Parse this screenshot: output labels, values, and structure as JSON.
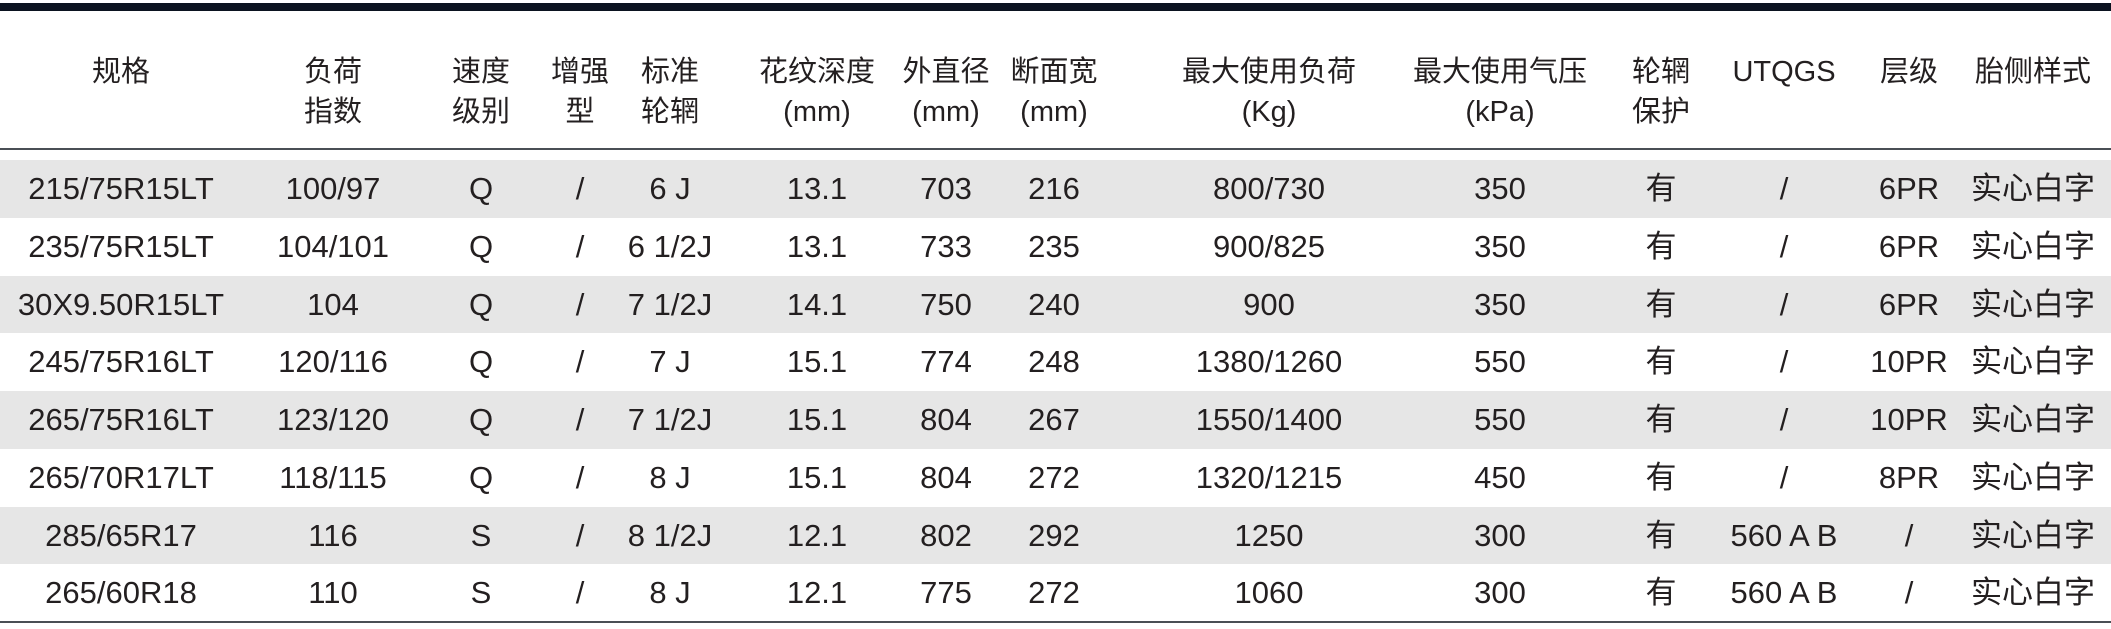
{
  "table": {
    "headers": [
      {
        "line1": "规格",
        "line2": ""
      },
      {
        "line1": "负荷",
        "line2": "指数"
      },
      {
        "line1": "速度",
        "line2": "级别"
      },
      {
        "line1": "增强",
        "line2": "型"
      },
      {
        "line1": "标准",
        "line2": "轮辋"
      },
      {
        "line1": "花纹深度",
        "line2": "(mm)"
      },
      {
        "line1": "外直径",
        "line2": "(mm)"
      },
      {
        "line1": "断面宽",
        "line2": "(mm)"
      },
      {
        "line1": "最大使用负荷",
        "line2": "(Kg)"
      },
      {
        "line1": "最大使用气压",
        "line2": "(kPa)"
      },
      {
        "line1": "轮辋",
        "line2": "保护"
      },
      {
        "line1": "UTQGS",
        "line2": ""
      },
      {
        "line1": "层级",
        "line2": ""
      },
      {
        "line1": "胎侧样式",
        "line2": ""
      }
    ],
    "rows": [
      [
        "215/75R15LT",
        "100/97",
        "Q",
        "/",
        "6 J",
        "13.1",
        "703",
        "216",
        "800/730",
        "350",
        "有",
        "/",
        "6PR",
        "实心白字"
      ],
      [
        "235/75R15LT",
        "104/101",
        "Q",
        "/",
        "6 1/2J",
        "13.1",
        "733",
        "235",
        "900/825",
        "350",
        "有",
        "/",
        "6PR",
        "实心白字"
      ],
      [
        "30X9.50R15LT",
        "104",
        "Q",
        "/",
        "7 1/2J",
        "14.1",
        "750",
        "240",
        "900",
        "350",
        "有",
        "/",
        "6PR",
        "实心白字"
      ],
      [
        "245/75R16LT",
        "120/116",
        "Q",
        "/",
        "7 J",
        "15.1",
        "774",
        "248",
        "1380/1260",
        "550",
        "有",
        "/",
        "10PR",
        "实心白字"
      ],
      [
        "265/75R16LT",
        "123/120",
        "Q",
        "/",
        "7 1/2J",
        "15.1",
        "804",
        "267",
        "1550/1400",
        "550",
        "有",
        "/",
        "10PR",
        "实心白字"
      ],
      [
        "265/70R17LT",
        "118/115",
        "Q",
        "/",
        "8 J",
        "15.1",
        "804",
        "272",
        "1320/1215",
        "450",
        "有",
        "/",
        "8PR",
        "实心白字"
      ],
      [
        "285/65R17",
        "116",
        "S",
        "/",
        "8 1/2J",
        "12.1",
        "802",
        "292",
        "1250",
        "300",
        "有",
        "560 A B",
        "/",
        "实心白字"
      ],
      [
        "265/60R18",
        "110",
        "S",
        "/",
        "8 J",
        "12.1",
        "775",
        "272",
        "1060",
        "300",
        "有",
        "560 A B",
        "/",
        "实心白字"
      ]
    ]
  },
  "colors": {
    "rule": "#0b1320",
    "band": "#e6e6e6",
    "text": "#231f20"
  }
}
